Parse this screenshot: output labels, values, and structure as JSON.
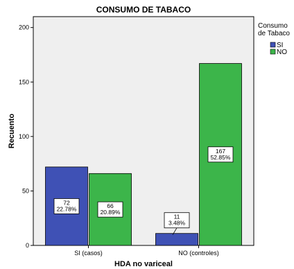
{
  "chart_data": {
    "type": "bar",
    "title": "CONSUMO DE TABACO",
    "xlabel": "HDA no variceal",
    "ylabel": "Recuento",
    "categories": [
      "SI (casos)",
      "NO (controles)"
    ],
    "series": [
      {
        "name": "SI",
        "color": "#3f51b5",
        "values": [
          72,
          11
        ],
        "labels": [
          [
            "72",
            "22.78%"
          ],
          [
            "11",
            "3.48%"
          ]
        ]
      },
      {
        "name": "NO",
        "color": "#3cb54a",
        "values": [
          66,
          167
        ],
        "labels": [
          [
            "66",
            "20.89%"
          ],
          [
            "167",
            "52.85%"
          ]
        ]
      }
    ],
    "ylim": [
      0,
      210
    ],
    "yticks": [
      0,
      50,
      100,
      150,
      200
    ],
    "legend": {
      "title": "Consumo de Tabaco",
      "title_lines": [
        "Consumo",
        "de Tabaco"
      ],
      "position": "top-right"
    },
    "grid": false,
    "plot_background": "#efefef"
  }
}
